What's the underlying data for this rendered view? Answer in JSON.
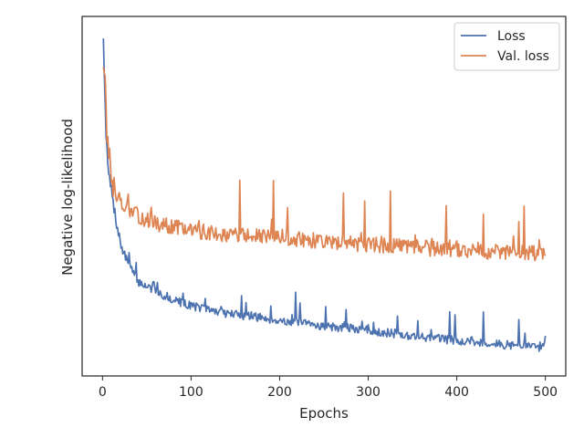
{
  "chart_data": {
    "type": "line",
    "title": "",
    "xlabel": "Epochs",
    "ylabel": "Negative log-likelihood",
    "xlim": [
      -23,
      523
    ],
    "ylim": [
      0,
      1
    ],
    "xticks": [
      0,
      100,
      200,
      300,
      400,
      500
    ],
    "yticks_visible": false,
    "grid": false,
    "legend_position": "top-right",
    "series": [
      {
        "name": "Loss",
        "color": "#4c72b0",
        "anchors": [
          [
            1,
            0.95
          ],
          [
            3,
            0.72
          ],
          [
            5,
            0.62
          ],
          [
            7,
            0.56
          ],
          [
            9,
            0.53
          ],
          [
            11,
            0.5
          ],
          [
            13,
            0.46
          ],
          [
            15,
            0.43
          ],
          [
            18,
            0.4
          ],
          [
            21,
            0.36
          ],
          [
            25,
            0.335
          ],
          [
            30,
            0.31
          ],
          [
            35,
            0.285
          ],
          [
            40,
            0.262
          ],
          [
            50,
            0.25
          ],
          [
            60,
            0.236
          ],
          [
            70,
            0.222
          ],
          [
            80,
            0.212
          ],
          [
            90,
            0.203
          ],
          [
            100,
            0.196
          ],
          [
            120,
            0.184
          ],
          [
            140,
            0.174
          ],
          [
            160,
            0.168
          ],
          [
            180,
            0.162
          ],
          [
            200,
            0.154
          ],
          [
            220,
            0.148
          ],
          [
            240,
            0.142
          ],
          [
            260,
            0.136
          ],
          [
            280,
            0.132
          ],
          [
            300,
            0.127
          ],
          [
            320,
            0.12
          ],
          [
            340,
            0.114
          ],
          [
            360,
            0.109
          ],
          [
            380,
            0.104
          ],
          [
            400,
            0.099
          ],
          [
            420,
            0.094
          ],
          [
            440,
            0.089
          ],
          [
            460,
            0.086
          ],
          [
            480,
            0.083
          ],
          [
            495,
            0.08
          ],
          [
            500,
            0.1
          ]
        ],
        "noise": 0.012,
        "spikes": [
          [
            3,
            0.06
          ],
          [
            30,
            0.045
          ],
          [
            38,
            0.035
          ],
          [
            58,
            0.025
          ],
          [
            157,
            0.065
          ],
          [
            162,
            0.03
          ],
          [
            190,
            0.035
          ],
          [
            218,
            0.08
          ],
          [
            223,
            0.05
          ],
          [
            252,
            0.05
          ],
          [
            275,
            0.06
          ],
          [
            333,
            0.06
          ],
          [
            356,
            0.045
          ],
          [
            392,
            0.07
          ],
          [
            398,
            0.075
          ],
          [
            430,
            0.095
          ],
          [
            470,
            0.07
          ],
          [
            477,
            0.045
          ]
        ],
        "seed": 7
      },
      {
        "name": "Val. loss",
        "color": "#dd8452",
        "anchors": [
          [
            1,
            0.88
          ],
          [
            3,
            0.77
          ],
          [
            5,
            0.68
          ],
          [
            7,
            0.62
          ],
          [
            9,
            0.57
          ],
          [
            12,
            0.53
          ],
          [
            15,
            0.51
          ],
          [
            20,
            0.49
          ],
          [
            30,
            0.46
          ],
          [
            40,
            0.445
          ],
          [
            50,
            0.435
          ],
          [
            60,
            0.425
          ],
          [
            80,
            0.415
          ],
          [
            100,
            0.405
          ],
          [
            150,
            0.392
          ],
          [
            200,
            0.383
          ],
          [
            250,
            0.374
          ],
          [
            300,
            0.366
          ],
          [
            350,
            0.358
          ],
          [
            400,
            0.35
          ],
          [
            450,
            0.343
          ],
          [
            500,
            0.34
          ]
        ],
        "noise": 0.022,
        "spikes": [
          [
            3,
            0.1
          ],
          [
            155,
            0.175
          ],
          [
            193,
            0.14
          ],
          [
            209,
            0.07
          ],
          [
            272,
            0.16
          ],
          [
            296,
            0.12
          ],
          [
            325,
            0.13
          ],
          [
            388,
            0.14
          ],
          [
            430,
            0.11
          ],
          [
            476,
            0.14
          ],
          [
            470,
            0.08
          ]
        ],
        "seed": 13
      }
    ]
  }
}
